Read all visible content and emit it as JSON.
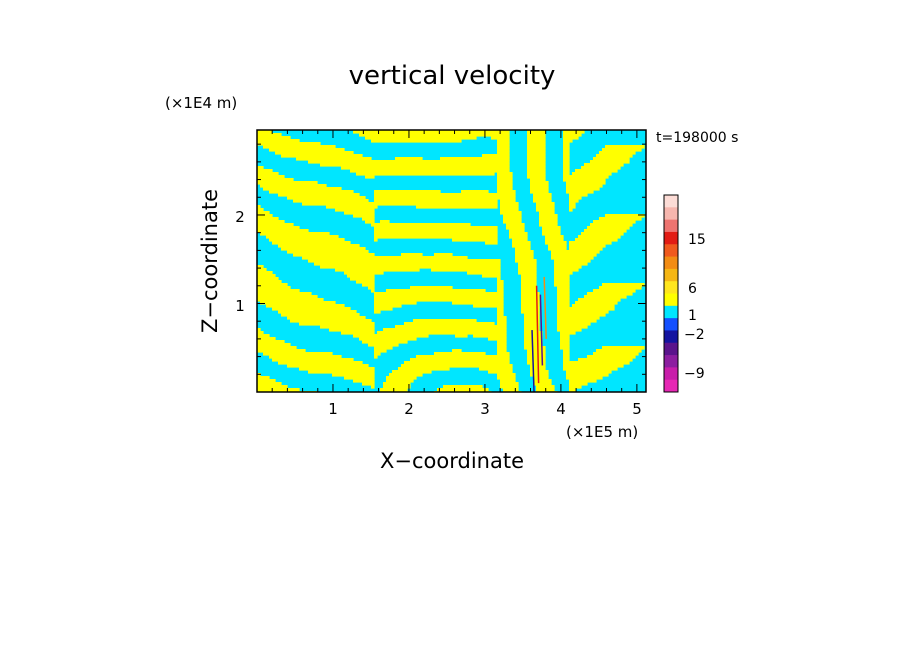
{
  "chart_data": {
    "type": "heatmap",
    "title": "vertical velocity",
    "xlabel": "X−coordinate",
    "ylabel": "Z−coordinate",
    "x_unit": "(×1E5 m)",
    "y_unit": "(×1E4 m)",
    "time_label": "t=198000 s",
    "xlim": [
      0,
      5.12
    ],
    "ylim": [
      0,
      2.96
    ],
    "xticks": [
      "1",
      "2",
      "3",
      "4",
      "5"
    ],
    "yticks": [
      "1",
      "2"
    ],
    "colorbar": {
      "labels": [
        "15",
        "6",
        "1",
        "−2",
        "−9"
      ],
      "colors_top_to_bottom": [
        "#fcdcd6",
        "#f6b6ae",
        "#ee7470",
        "#e21c14",
        "#f05a1e",
        "#f28c14",
        "#f5b614",
        "#ffe61e",
        "#ffff00",
        "#00e6ff",
        "#1450ff",
        "#1414a0",
        "#5a148c",
        "#8c1ea0",
        "#c81eaa",
        "#e628b4"
      ],
      "positive_fill": "#ffff00",
      "negative_fill": "#00e6ff"
    }
  }
}
